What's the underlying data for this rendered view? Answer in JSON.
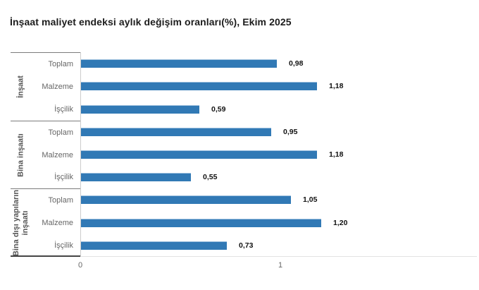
{
  "chart_data": {
    "type": "bar",
    "orientation": "horizontal",
    "title": "İnşaat maliyet endeksi aylık değişim oranları(%), Ekim 2025",
    "unit": "%",
    "bar_color": "#3179b5",
    "grid": false,
    "legend": "none",
    "xlim": [
      0,
      1.94
    ],
    "xticks": [
      {
        "value": 0,
        "label": "0"
      },
      {
        "value": 1,
        "label": "1"
      }
    ],
    "categories": [
      "Toplam",
      "Malzeme",
      "İşçilik"
    ],
    "groups": [
      {
        "label": "İnşaat",
        "categories": [
          "Toplam",
          "Malzeme",
          "İşçilik"
        ],
        "values": [
          0.98,
          1.18,
          0.59
        ],
        "value_labels": [
          "0,98",
          "1,18",
          "0,59"
        ]
      },
      {
        "label": "Bina inşaatı",
        "categories": [
          "Toplam",
          "Malzeme",
          "İşçilik"
        ],
        "values": [
          0.95,
          1.18,
          0.55
        ],
        "value_labels": [
          "0,95",
          "1,18",
          "0,55"
        ]
      },
      {
        "label": "Bina dışı yapıların inşaatı",
        "categories": [
          "Toplam",
          "Malzeme",
          "İşçilik"
        ],
        "values": [
          1.05,
          1.2,
          0.73
        ],
        "value_labels": [
          "1,05",
          "1,20",
          "0,73"
        ]
      }
    ]
  }
}
